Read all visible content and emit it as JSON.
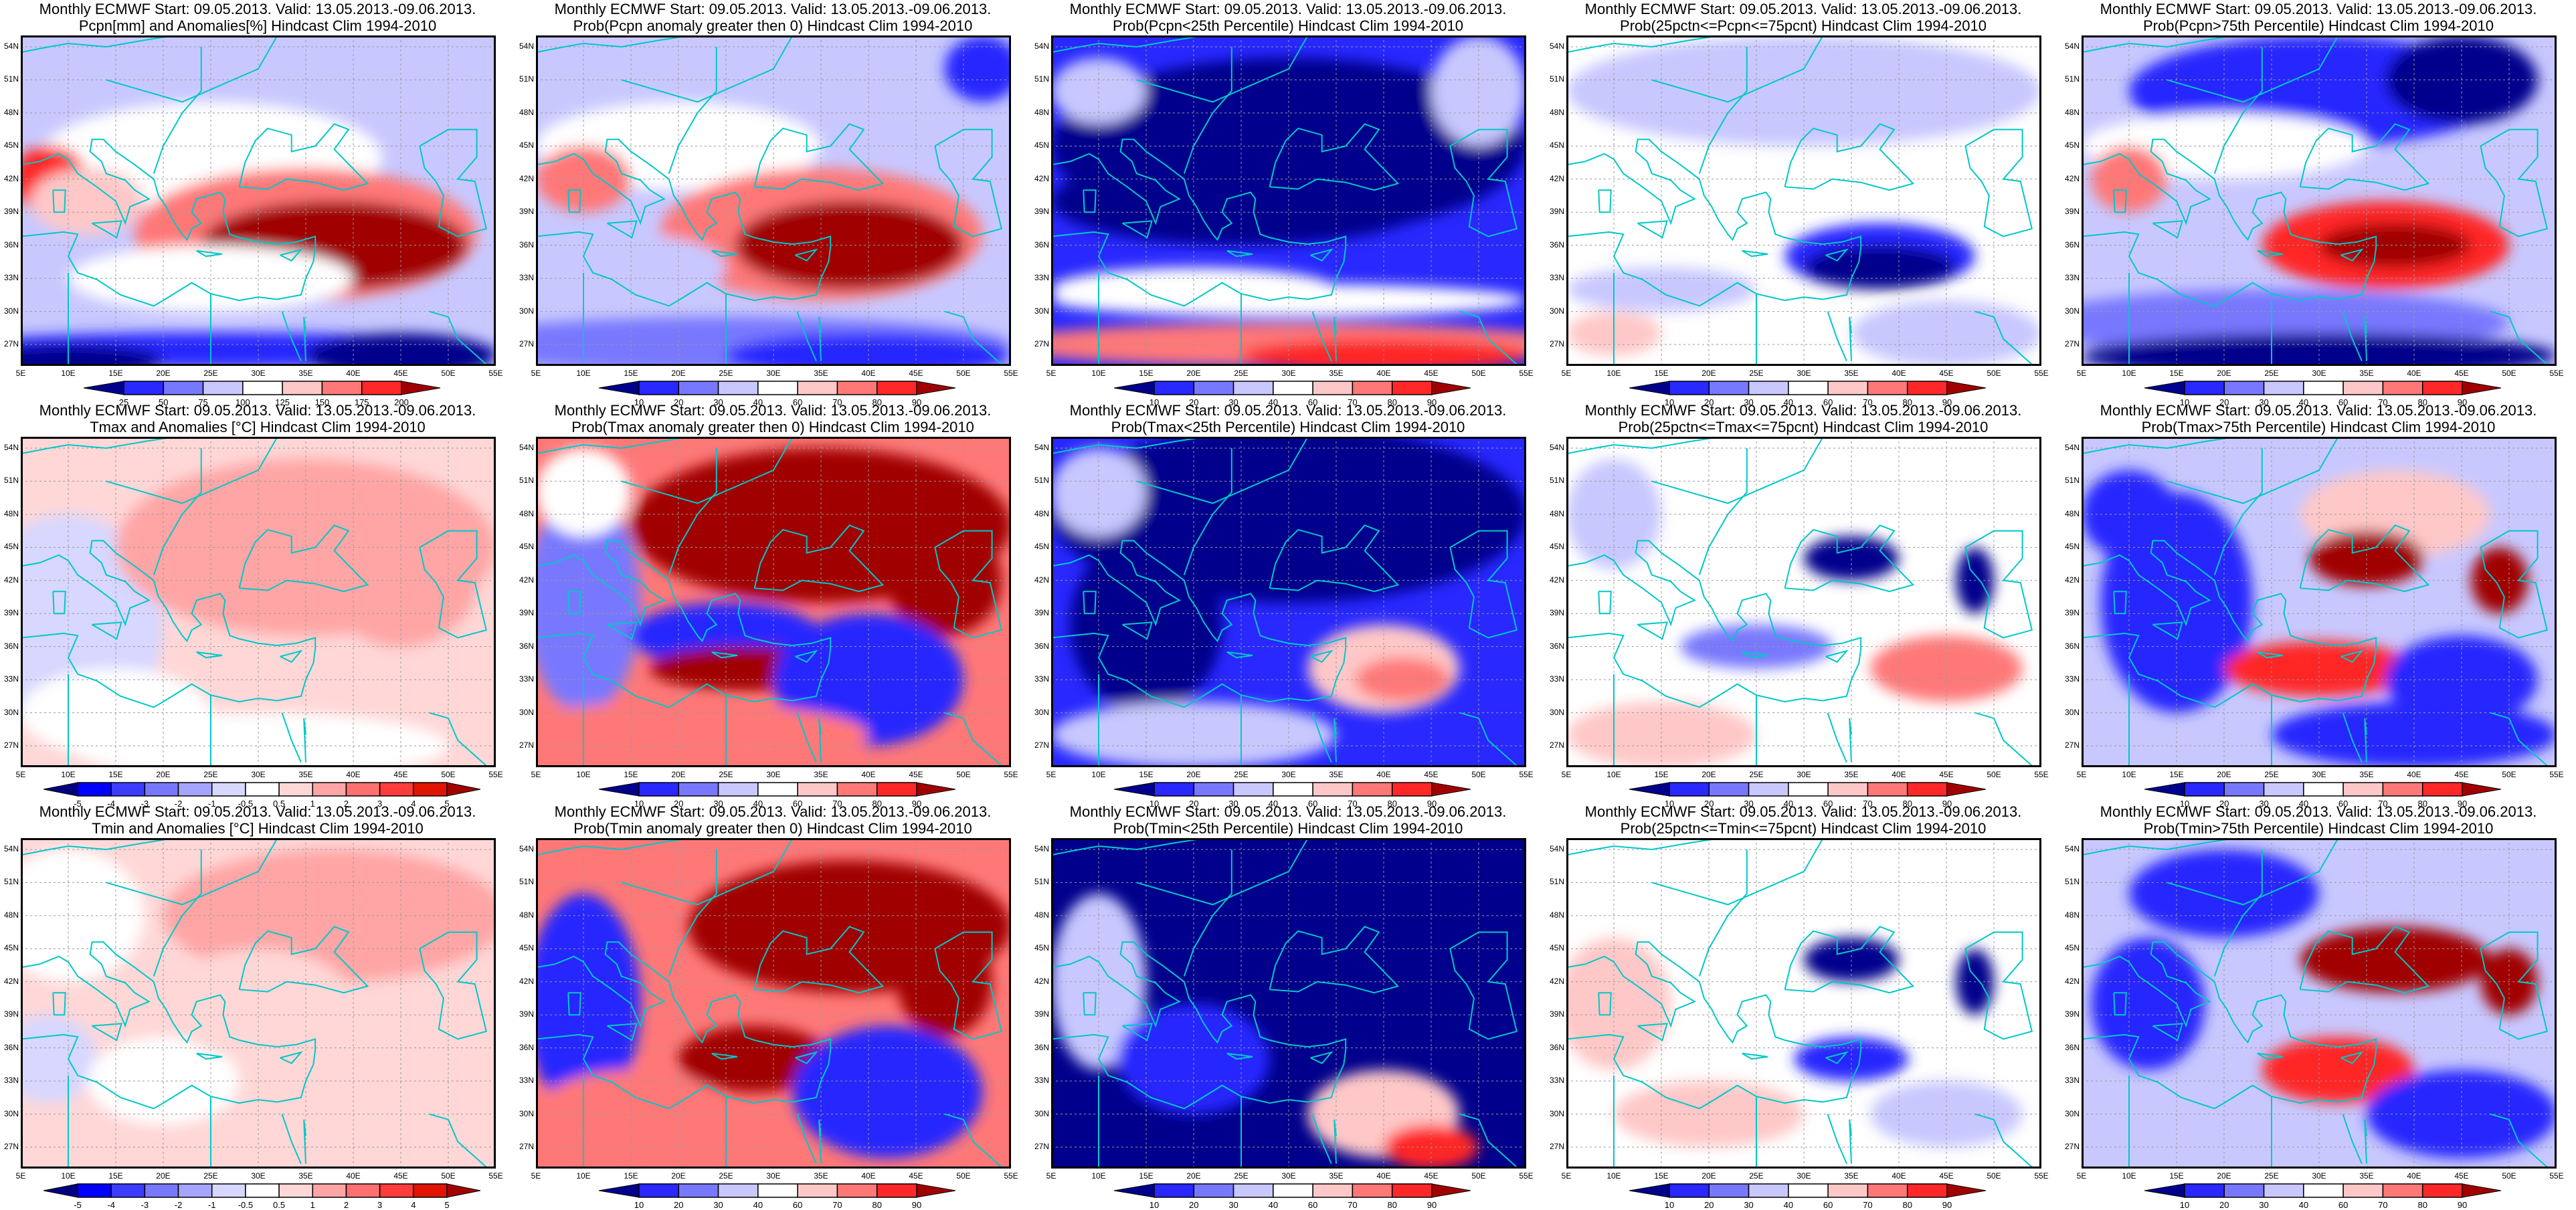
{
  "header": "Monthly ECMWF Start: 09.05.2013. Valid: 13.05.2013.-09.06.2013.",
  "lat_labels": [
    "54N",
    "51N",
    "48N",
    "45N",
    "42N",
    "39N",
    "36N",
    "33N",
    "30N",
    "27N"
  ],
  "lon_labels": [
    "5E",
    "10E",
    "15E",
    "20E",
    "25E",
    "30E",
    "35E",
    "40E",
    "45E",
    "50E",
    "55E"
  ],
  "colors": {
    "prob": [
      "#00008c",
      "#2828ff",
      "#7878ff",
      "#c8c8ff",
      "#ffffff",
      "#ffc8c8",
      "#ff7878",
      "#ff2828",
      "#a00000"
    ],
    "temp": [
      "#000080",
      "#0000ff",
      "#3c3cff",
      "#7878ff",
      "#a5a5ff",
      "#d7d7ff",
      "#ffffff",
      "#ffd7d7",
      "#ffa5a5",
      "#ff7070",
      "#ff3c3c",
      "#e01400",
      "#a00000"
    ],
    "coast": "#00c8c8"
  },
  "colorbars": {
    "pcpn": [
      "25",
      "50",
      "75",
      "100",
      "125",
      "150",
      "175",
      "200"
    ],
    "prob": [
      "10",
      "20",
      "30",
      "40",
      "60",
      "70",
      "80",
      "90"
    ],
    "temp": [
      "-5",
      "-4",
      "-3",
      "-2",
      "-1",
      "-0.5",
      "0.5",
      "1",
      "2",
      "3",
      "4",
      "5"
    ]
  },
  "panels": [
    {
      "title": "Pcpn[mm] and Anomalies[%] Hindcast Clim 1994-2010",
      "cb": "pcpn"
    },
    {
      "title": "Prob(Pcpn anomaly greater then 0) Hindcast Clim 1994-2010",
      "cb": "prob"
    },
    {
      "title": "Prob(Pcpn<25th Percentile) Hindcast Clim 1994-2010",
      "cb": "prob"
    },
    {
      "title": "Prob(25pctn<=Pcpn<=75pcnt) Hindcast Clim 1994-2010",
      "cb": "prob"
    },
    {
      "title": "Prob(Pcpn>75th Percentile) Hindcast Clim 1994-2010",
      "cb": "prob"
    },
    {
      "title": "Tmax and Anomalies [°C] Hindcast Clim 1994-2010",
      "cb": "temp"
    },
    {
      "title": "Prob(Tmax anomaly greater then 0) Hindcast Clim 1994-2010",
      "cb": "prob"
    },
    {
      "title": "Prob(Tmax<25th Percentile) Hindcast Clim 1994-2010",
      "cb": "prob"
    },
    {
      "title": "Prob(25pctn<=Tmax<=75pcnt) Hindcast Clim 1994-2010",
      "cb": "prob"
    },
    {
      "title": "Prob(Tmax>75th Percentile) Hindcast Clim 1994-2010",
      "cb": "prob"
    },
    {
      "title": "Tmin and Anomalies [°C] Hindcast Clim 1994-2010",
      "cb": "temp"
    },
    {
      "title": "Prob(Tmin anomaly greater then 0) Hindcast Clim 1994-2010",
      "cb": "prob"
    },
    {
      "title": "Prob(Tmin<25th Percentile) Hindcast Clim 1994-2010",
      "cb": "prob"
    },
    {
      "title": "Prob(25pctn<=Tmin<=75pcnt) Hindcast Clim 1994-2010",
      "cb": "prob"
    },
    {
      "title": "Prob(Tmin>75th Percentile) Hindcast Clim 1994-2010",
      "cb": "prob"
    }
  ]
}
